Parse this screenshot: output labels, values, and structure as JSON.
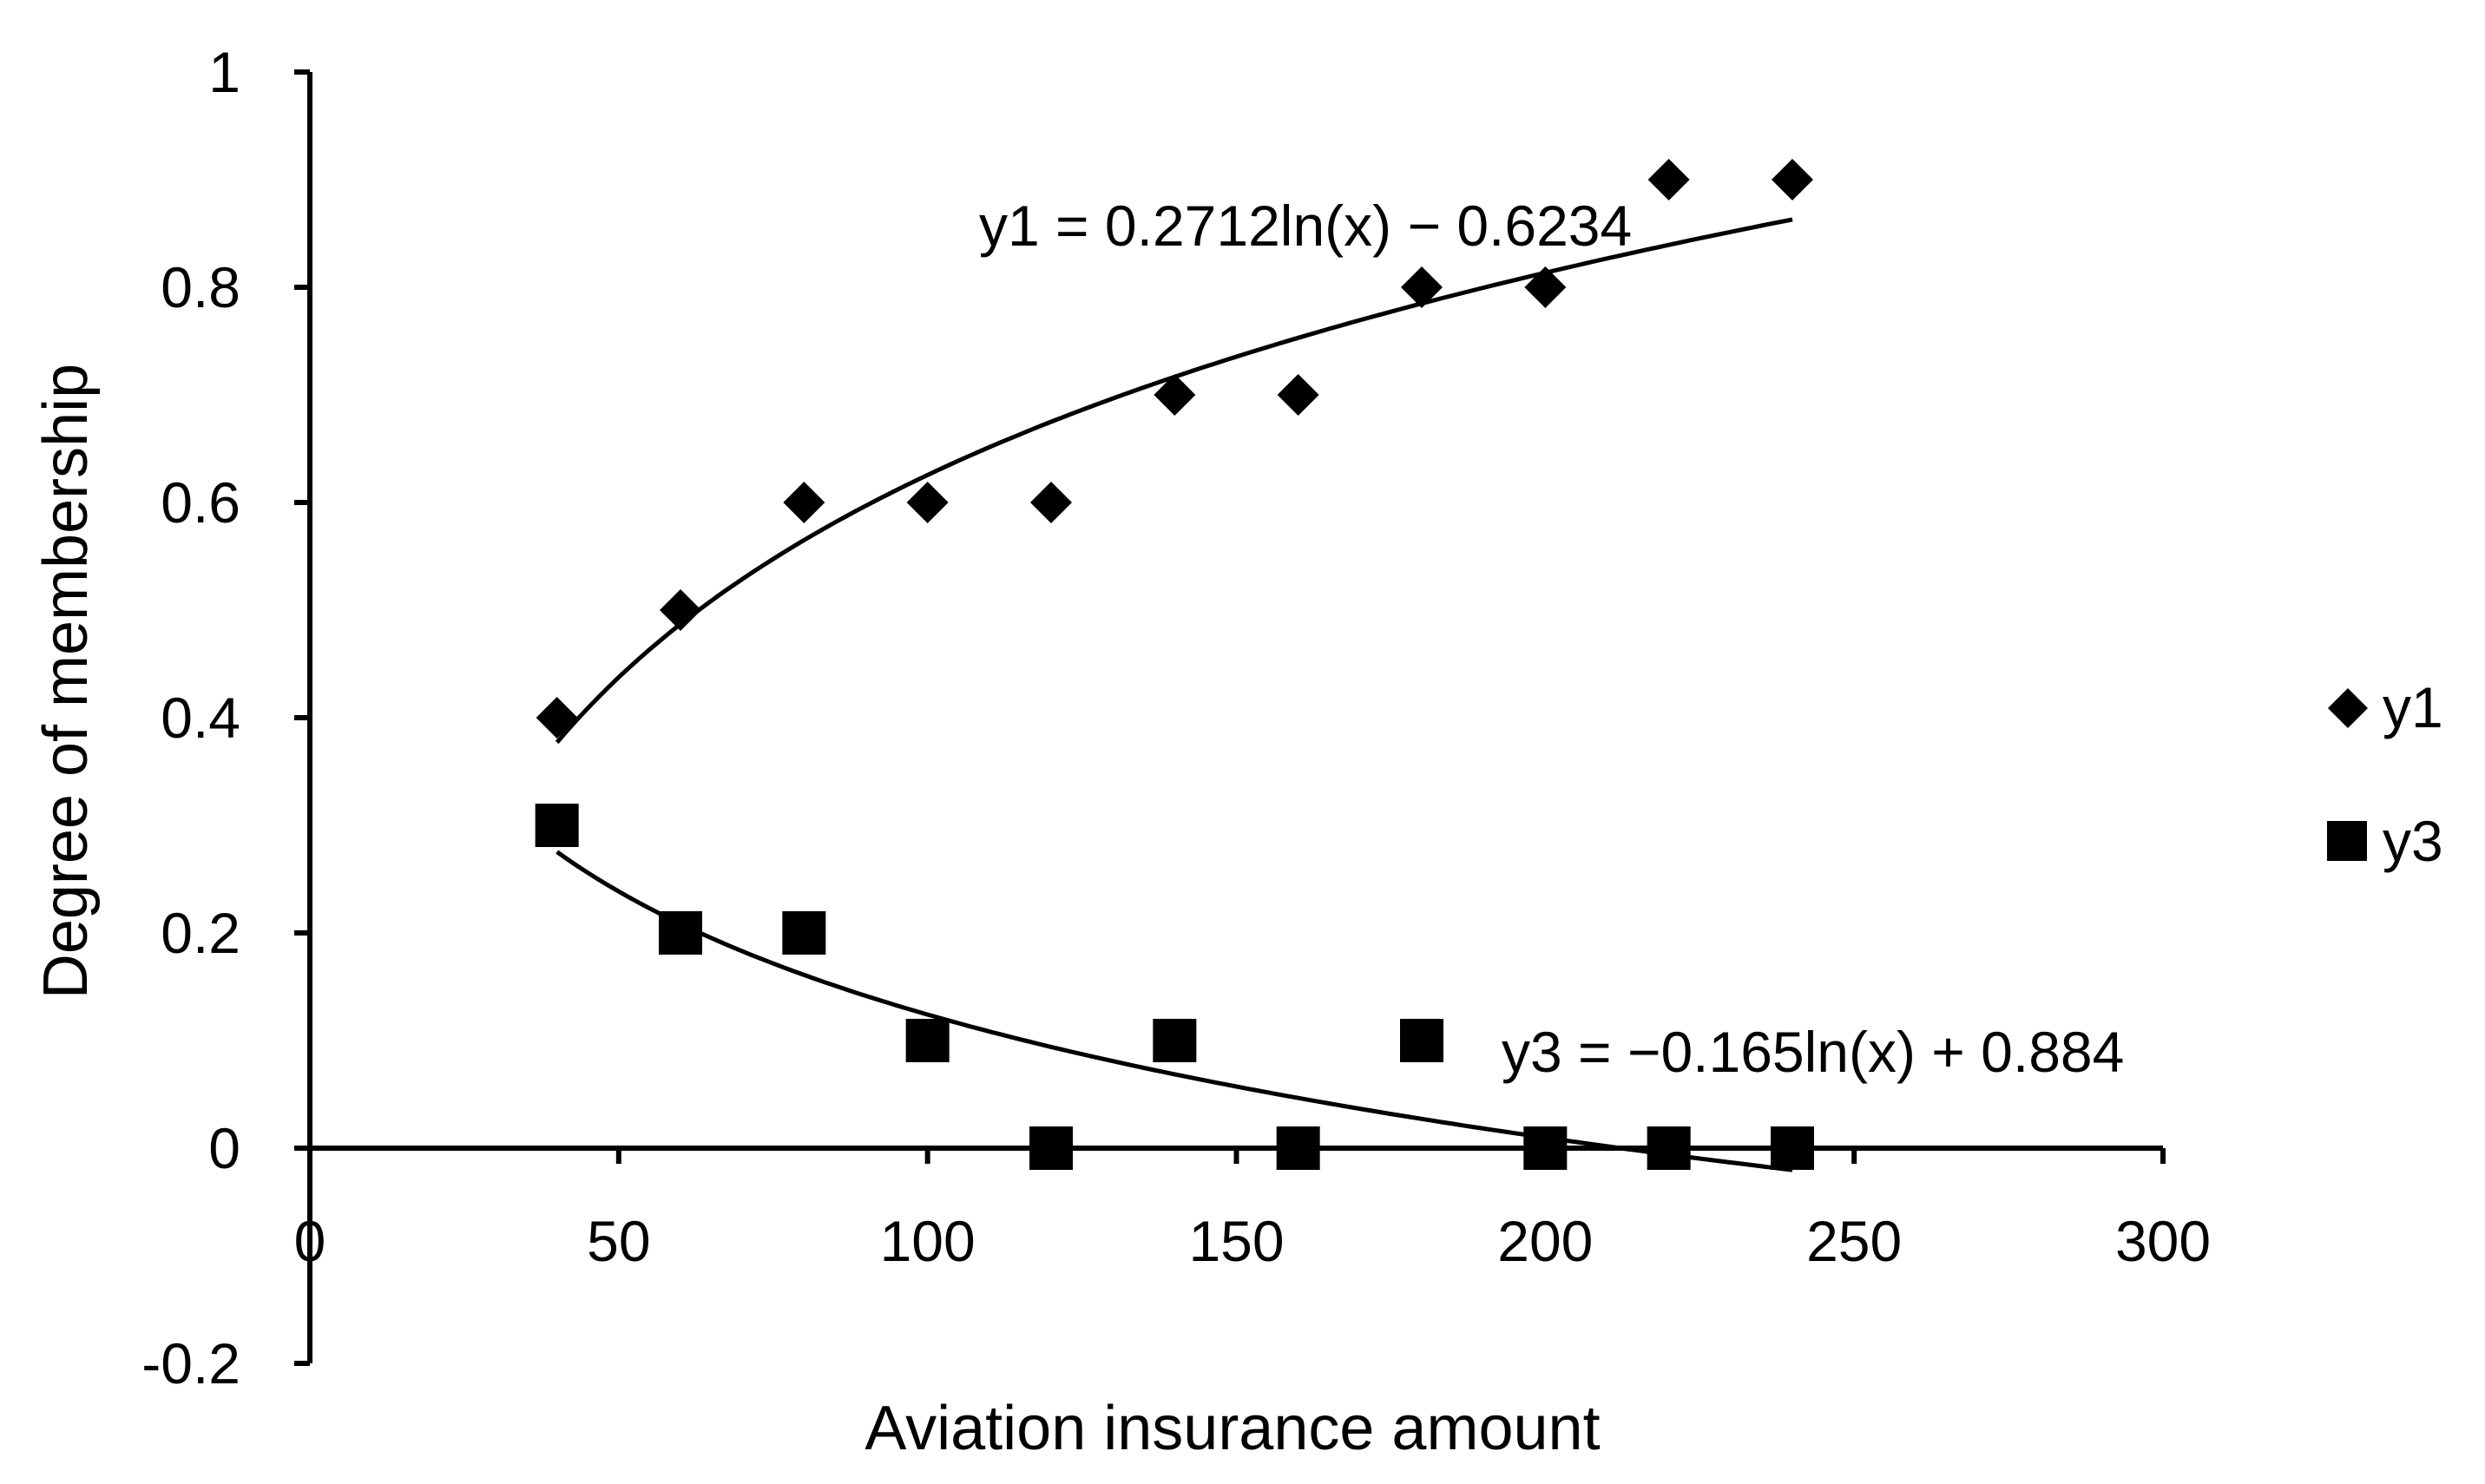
{
  "chart_data": {
    "type": "scatter",
    "title": "",
    "xlabel": "Aviation insurance amount",
    "ylabel": "Degree of membership",
    "xlim": [
      0,
      300
    ],
    "ylim": [
      -0.2,
      1
    ],
    "x_ticks": [
      0,
      50,
      100,
      150,
      200,
      250,
      300
    ],
    "x_tick_labels": [
      "0",
      "50",
      "100",
      "150",
      "200",
      "250",
      "300"
    ],
    "y_ticks": [
      -0.2,
      0,
      0.2,
      0.4,
      0.6,
      0.8,
      1
    ],
    "y_tick_labels": [
      "-0.2",
      "0",
      "0.2",
      "0.4",
      "0.6",
      "0.8",
      "1"
    ],
    "grid": false,
    "legend_position": "right",
    "series": [
      {
        "name": "y1",
        "marker": "diamond",
        "color": "#000000",
        "x": [
          40,
          60,
          80,
          100,
          120,
          140,
          160,
          180,
          200,
          220,
          240
        ],
        "y": [
          0.4,
          0.5,
          0.6,
          0.6,
          0.6,
          0.7,
          0.7,
          0.8,
          0.8,
          0.9,
          0.9
        ],
        "trendline": {
          "type": "log",
          "a": 0.2712,
          "b": -0.6234,
          "x_range": [
            40,
            240
          ],
          "equation": "y1 = 0.2712ln(x) − 0.6234"
        }
      },
      {
        "name": "y3",
        "marker": "square",
        "color": "#000000",
        "x": [
          40,
          60,
          80,
          100,
          120,
          140,
          160,
          180,
          200,
          220,
          240
        ],
        "y": [
          0.3,
          0.2,
          0.2,
          0.1,
          0,
          0.1,
          0,
          0.1,
          0,
          0,
          0
        ],
        "trendline": {
          "type": "log",
          "a": -0.165,
          "b": 0.884,
          "x_range": [
            40,
            240
          ],
          "equation": "y3 = −0.165ln(x) + 0.884"
        }
      }
    ]
  }
}
